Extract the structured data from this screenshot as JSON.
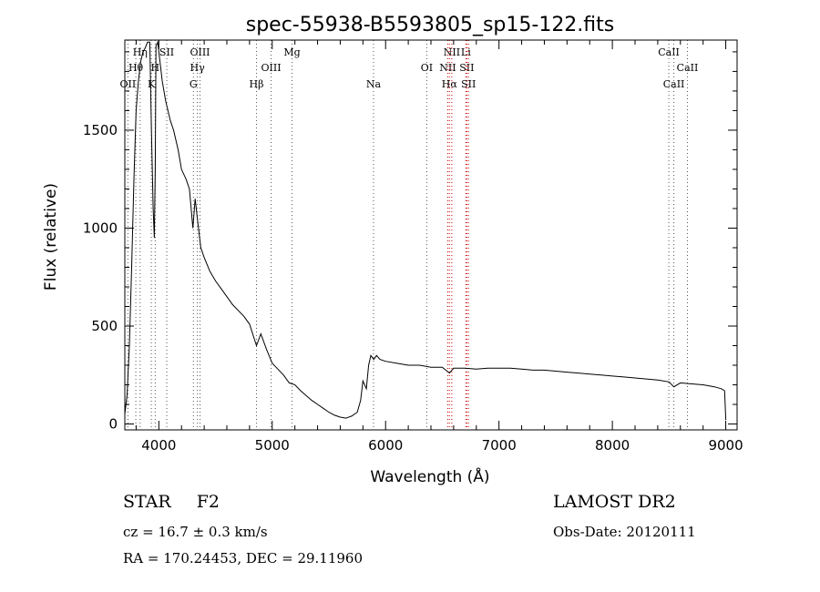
{
  "chart_data": {
    "type": "line",
    "title": "spec-55938-B5593805_sp15-122.fits",
    "xlabel": "Wavelength (Å)",
    "ylabel": "Flux (relative)",
    "xlim": [
      3700,
      9100
    ],
    "ylim": [
      -30,
      1960
    ],
    "x_ticks": [
      4000,
      5000,
      6000,
      7000,
      8000,
      9000
    ],
    "y_ticks": [
      0,
      500,
      1000,
      1500
    ],
    "grid": false,
    "series": [
      {
        "x": [
          3700,
          3720,
          3740,
          3760,
          3780,
          3800,
          3820,
          3840,
          3860,
          3880,
          3900,
          3920,
          3935,
          3950,
          3960,
          3968,
          3975,
          3990,
          4010,
          4030,
          4060,
          4101,
          4130,
          4170,
          4200,
          4240,
          4270,
          4300,
          4320,
          4340,
          4370,
          4400,
          4450,
          4500,
          4550,
          4600,
          4650,
          4700,
          4750,
          4800,
          4861,
          4900,
          4950,
          5000,
          5050,
          5100,
          5150,
          5200,
          5250,
          5300,
          5350,
          5400,
          5450,
          5500,
          5550,
          5600,
          5650,
          5700,
          5750,
          5780,
          5800,
          5830,
          5850,
          5870,
          5895,
          5920,
          5950,
          6000,
          6100,
          6200,
          6300,
          6400,
          6500,
          6563,
          6600,
          6700,
          6800,
          6900,
          7000,
          7100,
          7200,
          7300,
          7400,
          7500,
          7600,
          7700,
          7800,
          7900,
          8000,
          8100,
          8200,
          8300,
          8400,
          8500,
          8542,
          8600,
          8700,
          8800,
          8900,
          8960,
          8990,
          9000
        ],
        "y": [
          50,
          150,
          400,
          800,
          1250,
          1600,
          1750,
          1850,
          1900,
          1920,
          1950,
          1950,
          1500,
          1100,
          950,
          1300,
          1930,
          1950,
          1850,
          1750,
          1650,
          1550,
          1500,
          1400,
          1300,
          1250,
          1200,
          1000,
          1150,
          1050,
          900,
          850,
          780,
          730,
          690,
          650,
          610,
          580,
          550,
          510,
          400,
          460,
          380,
          310,
          280,
          250,
          210,
          200,
          170,
          145,
          120,
          100,
          80,
          60,
          45,
          35,
          30,
          40,
          60,
          120,
          220,
          180,
          300,
          350,
          330,
          350,
          330,
          320,
          310,
          300,
          300,
          290,
          290,
          260,
          285,
          285,
          280,
          285,
          285,
          285,
          280,
          275,
          275,
          270,
          265,
          260,
          255,
          250,
          245,
          240,
          235,
          230,
          225,
          215,
          190,
          210,
          205,
          200,
          190,
          180,
          170,
          20
        ]
      }
    ],
    "spectral_lines": [
      {
        "label": "Hη",
        "x": 3835,
        "row": 0
      },
      {
        "label": "Hθ",
        "x": 3797,
        "row": 1
      },
      {
        "label": "OII",
        "x": 3727,
        "row": 2
      },
      {
        "label": "SII",
        "x": 4070,
        "row": 0
      },
      {
        "label": "H",
        "x": 3968,
        "row": 1
      },
      {
        "label": "K",
        "x": 3934,
        "row": 2
      },
      {
        "label": "OIII",
        "x": 4363,
        "row": 0
      },
      {
        "label": "Hγ",
        "x": 4340,
        "row": 1
      },
      {
        "label": "G",
        "x": 4305,
        "row": 2
      },
      {
        "label": "Mg",
        "x": 5175,
        "row": 0
      },
      {
        "label": "OIII",
        "x": 4990,
        "row": 1
      },
      {
        "label": "Hβ",
        "x": 4861,
        "row": 2
      },
      {
        "label": "Na",
        "x": 5893,
        "row": 2
      },
      {
        "label": "NII",
        "x": 6584,
        "row": 0
      },
      {
        "label": "Li",
        "x": 6708,
        "row": 0
      },
      {
        "label": "OI",
        "x": 6363,
        "row": 1
      },
      {
        "label": "NII",
        "x": 6548,
        "row": 1
      },
      {
        "label": "SII",
        "x": 6716,
        "row": 1
      },
      {
        "label": "Hα",
        "x": 6563,
        "row": 2
      },
      {
        "label": "SII",
        "x": 6731,
        "row": 2
      },
      {
        "label": "CaII",
        "x": 8498,
        "row": 0
      },
      {
        "label": "CaII",
        "x": 8662,
        "row": 1
      },
      {
        "label": "CaII",
        "x": 8542,
        "row": 2
      }
    ],
    "colors": {
      "line": "#000000",
      "marker_black": "#555555",
      "marker_red": "#cc0000"
    }
  },
  "info": {
    "object_type": "STAR",
    "subclass": "F2",
    "survey": "LAMOST DR2",
    "redshift": "cz = 16.7 ± 0.3 km/s",
    "obs_date": "Obs-Date: 20120111",
    "coords": "RA = 170.24453, DEC =  29.11960"
  }
}
